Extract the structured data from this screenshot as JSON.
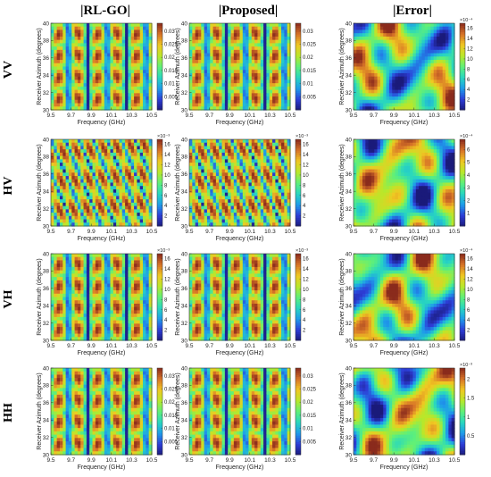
{
  "figure": {
    "column_titles": [
      "|RL-GO|",
      "|Proposed|",
      "|Error|"
    ],
    "row_labels": [
      "VV",
      "HV",
      "VH",
      "HH"
    ]
  },
  "colormap": [
    "#1a1a7a",
    "#2d3ed8",
    "#1e9bea",
    "#28d6c0",
    "#5ef07a",
    "#b8e82a",
    "#f0c822",
    "#d87428",
    "#8a2b1c"
  ],
  "chart_data": [
    {
      "type": "heatmap",
      "row": "VV",
      "col": "|RL-GO|",
      "xlabel": "Frequency (GHz)",
      "ylabel": "Receiver Azimuth (degrees)",
      "xticks": [
        "9.5",
        "9.7",
        "9.9",
        "10.1",
        "10.3",
        "10.5"
      ],
      "yticks": [
        "30",
        "32",
        "34",
        "36",
        "38",
        "40"
      ],
      "xlim": [
        9.5,
        10.5
      ],
      "ylim": [
        30,
        40
      ],
      "colorbar_ticks": [
        "0.005",
        "0.01",
        "0.015",
        "0.02",
        "0.025",
        "0.03"
      ],
      "colorbar_exponent": "",
      "clim": [
        0,
        0.033
      ],
      "pattern": "vertical-lobes"
    },
    {
      "type": "heatmap",
      "row": "VV",
      "col": "|Proposed|",
      "xlabel": "Frequency (GHz)",
      "ylabel": "Receiver Azimuth (degrees)",
      "xticks": [
        "9.5",
        "9.7",
        "9.9",
        "10.1",
        "10.3",
        "10.5"
      ],
      "yticks": [
        "30",
        "32",
        "34",
        "36",
        "38",
        "40"
      ],
      "xlim": [
        9.5,
        10.5
      ],
      "ylim": [
        30,
        40
      ],
      "colorbar_ticks": [
        "0.005",
        "0.01",
        "0.015",
        "0.02",
        "0.025",
        "0.03"
      ],
      "colorbar_exponent": "",
      "clim": [
        0,
        0.033
      ],
      "pattern": "vertical-lobes"
    },
    {
      "type": "heatmap",
      "row": "VV",
      "col": "|Error|",
      "xlabel": "Frequency (GHz)",
      "ylabel": "Receiver Azimuth (degrees)",
      "xticks": [
        "9.5",
        "9.7",
        "9.9",
        "10.1",
        "10.3",
        "10.5"
      ],
      "yticks": [
        "30",
        "32",
        "34",
        "36",
        "38",
        "40"
      ],
      "xlim": [
        9.5,
        10.5
      ],
      "ylim": [
        30,
        40
      ],
      "colorbar_ticks": [
        "2",
        "4",
        "6",
        "8",
        "10",
        "12",
        "14",
        "16"
      ],
      "colorbar_exponent": "×10⁻⁴",
      "clim": [
        0,
        17
      ],
      "pattern": "blobs"
    },
    {
      "type": "heatmap",
      "row": "HV",
      "col": "|RL-GO|",
      "xlabel": "Frequency (GHz)",
      "ylabel": "Receiver Azimuth (degrees)",
      "xticks": [
        "9.5",
        "9.7",
        "9.9",
        "10.1",
        "10.3",
        "10.5"
      ],
      "yticks": [
        "30",
        "32",
        "34",
        "36",
        "38",
        "40"
      ],
      "xlim": [
        9.5,
        10.5
      ],
      "ylim": [
        30,
        40
      ],
      "colorbar_ticks": [
        "2",
        "4",
        "6",
        "8",
        "10",
        "12",
        "14",
        "16"
      ],
      "colorbar_exponent": "×10⁻³",
      "clim": [
        0,
        17
      ],
      "pattern": "diagonal-bands"
    },
    {
      "type": "heatmap",
      "row": "HV",
      "col": "|Proposed|",
      "xlabel": "Frequency (GHz)",
      "ylabel": "Receiver Azimuth (degrees)",
      "xticks": [
        "9.5",
        "9.7",
        "9.9",
        "10.1",
        "10.3",
        "10.5"
      ],
      "yticks": [
        "30",
        "32",
        "34",
        "36",
        "38",
        "40"
      ],
      "xlim": [
        9.5,
        10.5
      ],
      "ylim": [
        30,
        40
      ],
      "colorbar_ticks": [
        "2",
        "4",
        "6",
        "8",
        "10",
        "12",
        "14",
        "16"
      ],
      "colorbar_exponent": "×10⁻³",
      "clim": [
        0,
        17
      ],
      "pattern": "diagonal-bands"
    },
    {
      "type": "heatmap",
      "row": "HV",
      "col": "|Error|",
      "xlabel": "Frequency (GHz)",
      "ylabel": "Receiver Azimuth (degrees)",
      "xticks": [
        "9.5",
        "9.7",
        "9.9",
        "10.1",
        "10.3",
        "10.5"
      ],
      "yticks": [
        "30",
        "32",
        "34",
        "36",
        "38",
        "40"
      ],
      "xlim": [
        9.5,
        10.5
      ],
      "ylim": [
        30,
        40
      ],
      "colorbar_ticks": [
        "1",
        "2",
        "3",
        "4",
        "5",
        "6"
      ],
      "colorbar_exponent": "×10⁻⁴",
      "clim": [
        0,
        6.8
      ],
      "pattern": "blobs"
    },
    {
      "type": "heatmap",
      "row": "VH",
      "col": "|RL-GO|",
      "xlabel": "Frequency (GHz)",
      "ylabel": "Receiver Azimuth (degrees)",
      "xticks": [
        "9.5",
        "9.7",
        "9.9",
        "10.1",
        "10.3",
        "10.5"
      ],
      "yticks": [
        "30",
        "32",
        "34",
        "36",
        "38",
        "40"
      ],
      "xlim": [
        9.5,
        10.5
      ],
      "ylim": [
        30,
        40
      ],
      "colorbar_ticks": [
        "2",
        "4",
        "6",
        "8",
        "10",
        "12",
        "14",
        "16"
      ],
      "colorbar_exponent": "×10⁻³",
      "clim": [
        0,
        17
      ],
      "pattern": "vertical-lobes"
    },
    {
      "type": "heatmap",
      "row": "VH",
      "col": "|Proposed|",
      "xlabel": "Frequency (GHz)",
      "ylabel": "Receiver Azimuth (degrees)",
      "xticks": [
        "9.5",
        "9.7",
        "9.9",
        "10.1",
        "10.3",
        "10.5"
      ],
      "yticks": [
        "30",
        "32",
        "34",
        "36",
        "38",
        "40"
      ],
      "xlim": [
        9.5,
        10.5
      ],
      "ylim": [
        30,
        40
      ],
      "colorbar_ticks": [
        "2",
        "4",
        "6",
        "8",
        "10",
        "12",
        "14",
        "16"
      ],
      "colorbar_exponent": "×10⁻³",
      "clim": [
        0,
        17
      ],
      "pattern": "vertical-lobes"
    },
    {
      "type": "heatmap",
      "row": "VH",
      "col": "|Error|",
      "xlabel": "Frequency (GHz)",
      "ylabel": "Receiver Azimuth (degrees)",
      "xticks": [
        "9.5",
        "9.7",
        "9.9",
        "10.1",
        "10.3",
        "10.5"
      ],
      "yticks": [
        "30",
        "32",
        "34",
        "36",
        "38",
        "40"
      ],
      "xlim": [
        9.5,
        10.5
      ],
      "ylim": [
        30,
        40
      ],
      "colorbar_ticks": [
        "2",
        "4",
        "6",
        "8",
        "10",
        "12",
        "14",
        "16"
      ],
      "colorbar_exponent": "×10⁻⁴",
      "clim": [
        0,
        17
      ],
      "pattern": "blobs"
    },
    {
      "type": "heatmap",
      "row": "HH",
      "col": "|RL-GO|",
      "xlabel": "Frequency (GHz)",
      "ylabel": "Receiver Azimuth (degrees)",
      "xticks": [
        "9.5",
        "9.7",
        "9.9",
        "10.1",
        "10.3",
        "10.5"
      ],
      "yticks": [
        "30",
        "32",
        "34",
        "36",
        "38",
        "40"
      ],
      "xlim": [
        9.5,
        10.5
      ],
      "ylim": [
        30,
        40
      ],
      "colorbar_ticks": [
        "0.005",
        "0.01",
        "0.015",
        "0.02",
        "0.025",
        "0.03"
      ],
      "colorbar_exponent": "",
      "clim": [
        0,
        0.033
      ],
      "pattern": "vertical-lobes"
    },
    {
      "type": "heatmap",
      "row": "HH",
      "col": "|Proposed|",
      "xlabel": "Frequency (GHz)",
      "ylabel": "Receiver Azimuth (degrees)",
      "xticks": [
        "9.5",
        "9.7",
        "9.9",
        "10.1",
        "10.3",
        "10.5"
      ],
      "yticks": [
        "30",
        "32",
        "34",
        "36",
        "38",
        "40"
      ],
      "xlim": [
        9.5,
        10.5
      ],
      "ylim": [
        30,
        40
      ],
      "colorbar_ticks": [
        "0.005",
        "0.01",
        "0.015",
        "0.02",
        "0.025",
        "0.03"
      ],
      "colorbar_exponent": "",
      "clim": [
        0,
        0.033
      ],
      "pattern": "vertical-lobes"
    },
    {
      "type": "heatmap",
      "row": "HH",
      "col": "|Error|",
      "xlabel": "Frequency (GHz)",
      "ylabel": "Receiver Azimuth (degrees)",
      "xticks": [
        "9.5",
        "9.7",
        "9.9",
        "10.1",
        "10.3",
        "10.5"
      ],
      "yticks": [
        "30",
        "32",
        "34",
        "36",
        "38",
        "40"
      ],
      "xlim": [
        9.5,
        10.5
      ],
      "ylim": [
        30,
        40
      ],
      "colorbar_ticks": [
        "0.5",
        "1",
        "1.5",
        "2"
      ],
      "colorbar_exponent": "×10⁻³",
      "clim": [
        0,
        2.3
      ],
      "pattern": "blobs"
    }
  ]
}
